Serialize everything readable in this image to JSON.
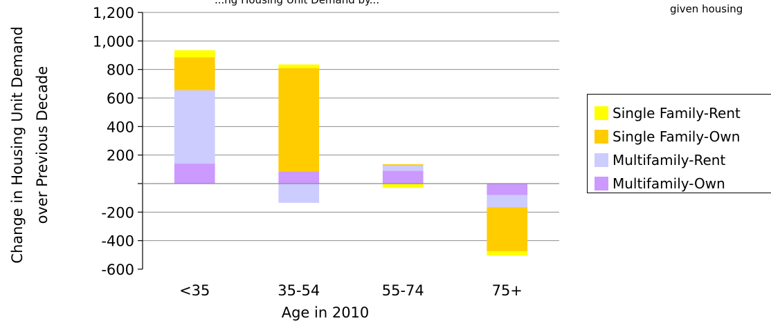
{
  "chart_data": {
    "type": "bar",
    "stacked": true,
    "title": "...ng Housing Unit Demand by...",
    "corner_note": "given housing",
    "xlabel": "Age in 2010",
    "ylabel_line1": "Change in Housing Unit Demand",
    "ylabel_line2": "over Previous Decade",
    "categories": [
      "<35",
      "35-54",
      "55-74",
      "75+"
    ],
    "ylim": [
      -600,
      1200
    ],
    "yticks": [
      {
        "value": 1200,
        "label": "1,200"
      },
      {
        "value": 1000,
        "label": "1,000"
      },
      {
        "value": 800,
        "label": "800"
      },
      {
        "value": 600,
        "label": "600"
      },
      {
        "value": 400,
        "label": "400"
      },
      {
        "value": 200,
        "label": "200"
      },
      {
        "value": 0,
        "label": ""
      },
      {
        "value": -200,
        "label": "-200"
      },
      {
        "value": -400,
        "label": "-400"
      },
      {
        "value": -600,
        "label": "-600"
      }
    ],
    "grid": true,
    "legend_position": "right",
    "series": [
      {
        "name": "Multifamily-Own",
        "color": "#CC99FF",
        "values": [
          140,
          85,
          90,
          -80
        ]
      },
      {
        "name": "Multifamily-Rent",
        "color": "#CCCCFF",
        "values": [
          515,
          -135,
          35,
          -85
        ]
      },
      {
        "name": "Single Family-Own",
        "color": "#FFCC00",
        "values": [
          230,
          725,
          10,
          -310
        ]
      },
      {
        "name": "Single Family-Rent",
        "color": "#FFFF00",
        "values": [
          50,
          25,
          -30,
          -30
        ]
      }
    ],
    "legend_order": [
      "Single Family-Rent",
      "Single Family-Own",
      "Multifamily-Rent",
      "Multifamily-Own"
    ]
  }
}
